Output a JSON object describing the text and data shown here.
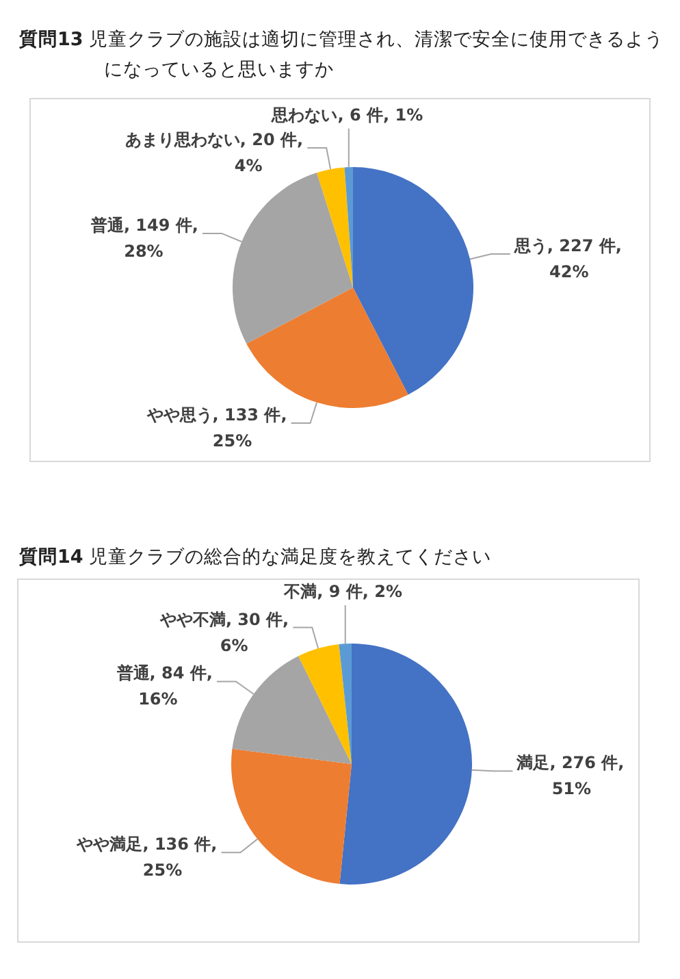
{
  "chart_data": [
    {
      "type": "pie",
      "title": "**質問13** 児童クラブの施設は適切に管理され、清潔で安全に使用できるようになっていると思いますか",
      "categories": [
        "思う",
        "やや思う",
        "普通",
        "あまり思わない",
        "思わない"
      ],
      "values": [
        227,
        133,
        149,
        20,
        6
      ],
      "value_labels": [
        "227 件, 42%",
        "133 件, 25%",
        "149 件, 28%",
        "20 件, 4%",
        "6 件, 1%"
      ],
      "colors": [
        "#4472c4",
        "#ed7d31",
        "#a5a5a5",
        "#ffc000",
        "#5b9bd5"
      ]
    },
    {
      "type": "pie",
      "title": "**質問14** 児童クラブの総合的な満足度を教えてください",
      "categories": [
        "満足",
        "やや満足",
        "普通",
        "やや不満",
        "不満"
      ],
      "values": [
        276,
        136,
        84,
        30,
        9
      ],
      "value_labels": [
        "276 件, 51%",
        "136 件, 25%",
        "84 件, 16%",
        "30 件, 6%",
        "9 件, 2%"
      ],
      "colors": [
        "#4472c4",
        "#ed7d31",
        "#a5a5a5",
        "#ffc000",
        "#5b9bd5"
      ]
    }
  ]
}
